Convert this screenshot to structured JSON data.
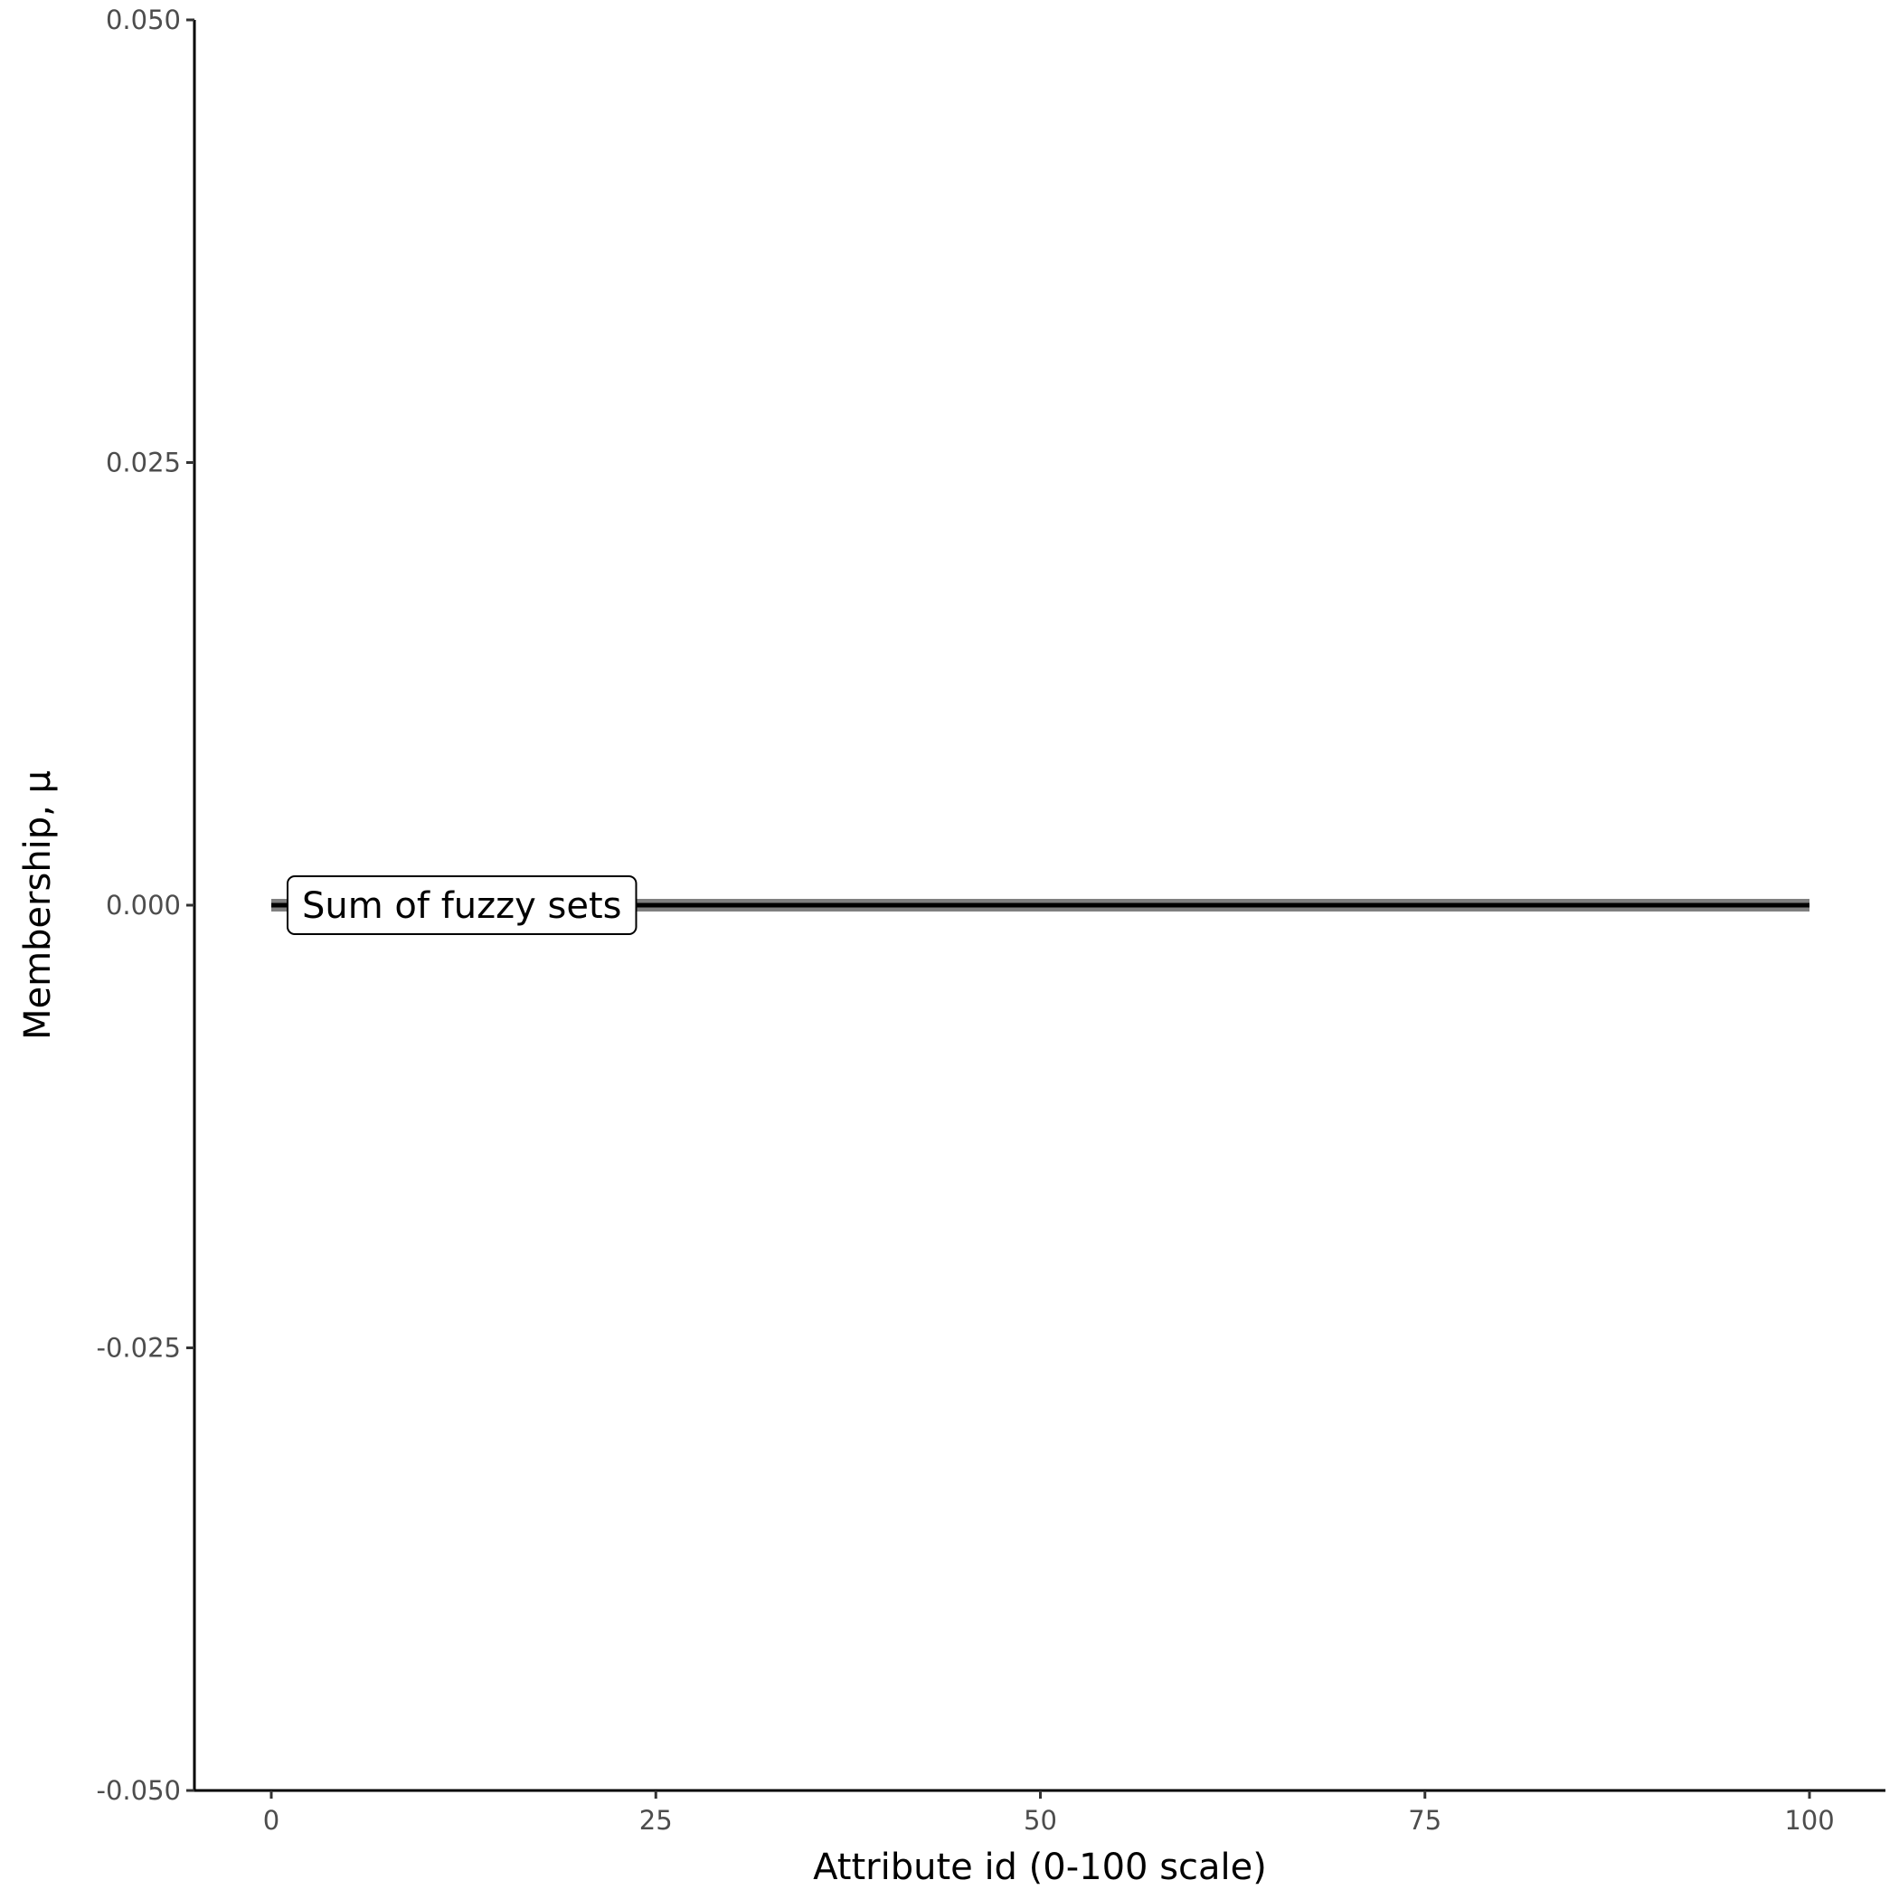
{
  "chart_data": {
    "type": "line",
    "title": "",
    "xlabel": "Attribute id (0-100 scale)",
    "ylabel": "Membership, μ",
    "xlim": [
      -5,
      105
    ],
    "ylim": [
      -0.05,
      0.05
    ],
    "x_ticks": [
      0,
      25,
      50,
      75,
      100
    ],
    "x_tick_labels": [
      "0",
      "25",
      "50",
      "75",
      "100"
    ],
    "y_ticks": [
      -0.05,
      -0.025,
      0,
      0.025,
      0.05
    ],
    "y_tick_labels": [
      "-0.050",
      "-0.025",
      "0.000",
      "0.025",
      "0.050"
    ],
    "grid": false,
    "series": [
      {
        "x": [
          0,
          100
        ],
        "y": [
          0,
          0
        ],
        "color": "#000000",
        "halo_color": "#808080"
      }
    ],
    "annotations": [
      {
        "text": "Sum of fuzzy sets",
        "x": 0,
        "y": 0,
        "style": "label-box"
      }
    ]
  }
}
